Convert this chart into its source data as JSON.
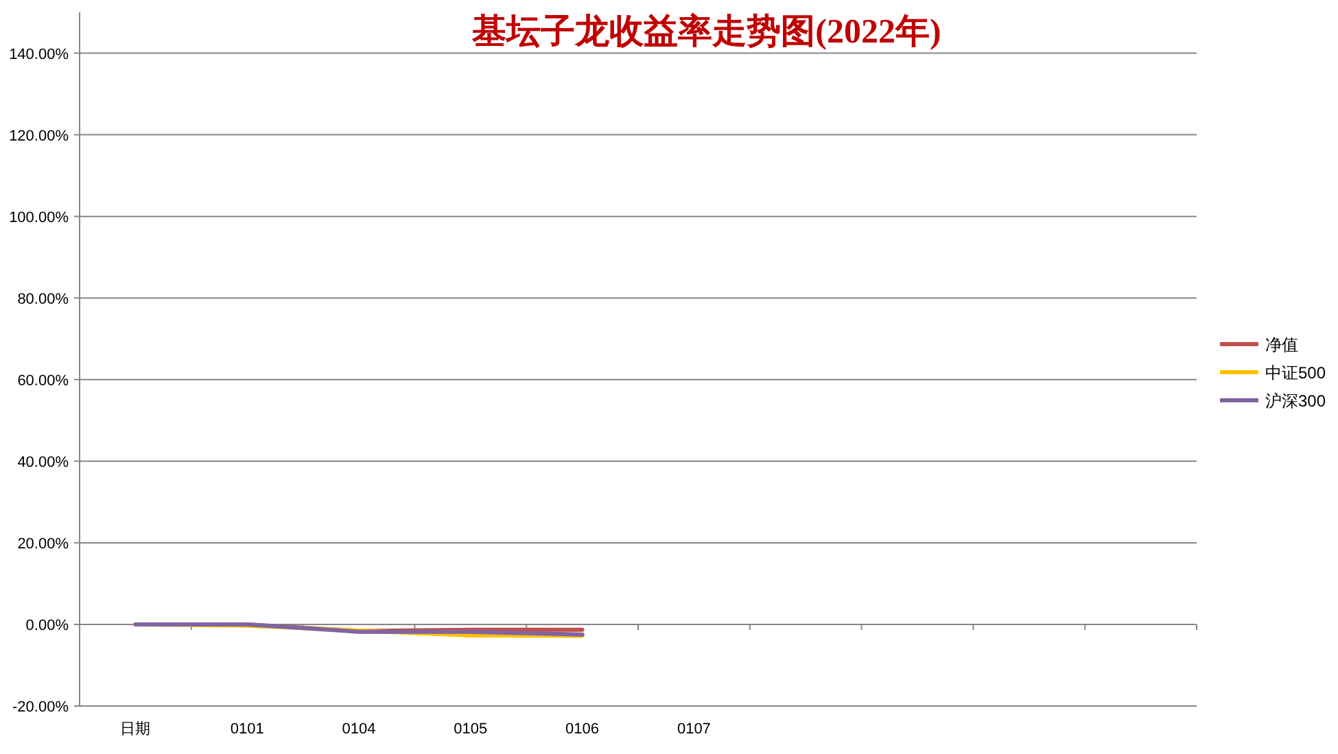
{
  "chart_data": {
    "type": "line",
    "title": "基坛子龙收益率走势图(2022年)",
    "categories": [
      "日期",
      "0101",
      "0104",
      "0105",
      "0106",
      "0107",
      null,
      null,
      null,
      null
    ],
    "series": [
      {
        "name": "净值",
        "color": "#c0504d",
        "values": [
          0,
          0,
          -1.6,
          -1.3,
          -1.3,
          null,
          null,
          null,
          null,
          null
        ]
      },
      {
        "name": "中证500",
        "color": "#ffc000",
        "values": [
          0,
          -0.3,
          -1.5,
          -2.7,
          -2.8,
          null,
          null,
          null,
          null,
          null
        ]
      },
      {
        "name": "沪深300",
        "color": "#8064a2",
        "values": [
          0,
          0,
          -1.8,
          -1.8,
          -2.5,
          null,
          null,
          null,
          null,
          null
        ]
      }
    ],
    "ylim": [
      -20,
      150
    ],
    "yticks": [
      {
        "value": -20,
        "label": "-20.00%"
      },
      {
        "value": 0,
        "label": "0.00%"
      },
      {
        "value": 20,
        "label": "20.00%"
      },
      {
        "value": 40,
        "label": "40.00%"
      },
      {
        "value": 60,
        "label": "60.00%"
      },
      {
        "value": 80,
        "label": "80.00%"
      },
      {
        "value": 100,
        "label": "100.00%"
      },
      {
        "value": 120,
        "label": "120.00%"
      },
      {
        "value": 140,
        "label": "140.00%"
      }
    ],
    "grid": "y",
    "legend": "right",
    "line_style": "solid"
  }
}
